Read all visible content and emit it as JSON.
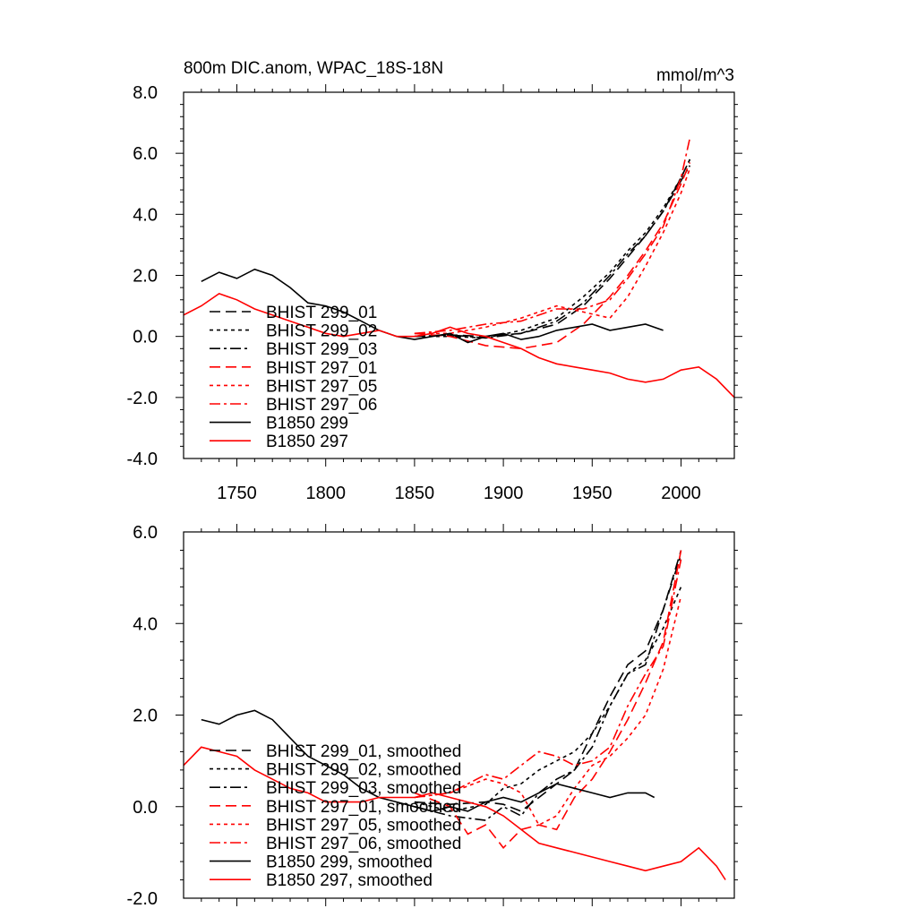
{
  "chart_data": [
    {
      "type": "line",
      "title_left": "800m DIC.anom, WPAC_18S-18N",
      "title_right": "mmol/m^3",
      "xlim": [
        1720,
        2030
      ],
      "ylim": [
        -4.0,
        8.0
      ],
      "xticks": [
        1750,
        1800,
        1850,
        1900,
        1950,
        2000
      ],
      "xtick_labels": [
        "1750",
        "1800",
        "1850",
        "1900",
        "1950",
        "2000"
      ],
      "yticks": [
        -4.0,
        -2.0,
        0.0,
        2.0,
        4.0,
        6.0,
        8.0
      ],
      "ytick_labels": [
        "-4.0",
        "-2.0",
        "0.0",
        "2.0",
        "4.0",
        "6.0",
        "8.0"
      ],
      "legend_position": "left",
      "series": [
        {
          "name": "BHIST 299_01",
          "color": "#000000",
          "dash": "long",
          "x": [
            1850,
            1870,
            1890,
            1910,
            1930,
            1945,
            1960,
            1970,
            1980,
            1990,
            2000,
            2005
          ],
          "y": [
            0.0,
            0.05,
            0.0,
            0.1,
            0.4,
            1.0,
            1.9,
            2.6,
            3.3,
            4.1,
            5.2,
            5.8
          ]
        },
        {
          "name": "BHIST 299_02",
          "color": "#000000",
          "dash": "short",
          "x": [
            1850,
            1870,
            1890,
            1910,
            1930,
            1945,
            1960,
            1970,
            1980,
            1990,
            2000,
            2005
          ],
          "y": [
            0.0,
            0.0,
            -0.05,
            0.2,
            0.6,
            1.3,
            2.1,
            2.8,
            3.4,
            4.2,
            5.2,
            5.8
          ]
        },
        {
          "name": "BHIST 299_03",
          "color": "#000000",
          "dash": "dashdot",
          "x": [
            1850,
            1870,
            1890,
            1910,
            1930,
            1945,
            1960,
            1970,
            1980,
            1990,
            2000,
            2005
          ],
          "y": [
            0.0,
            0.05,
            -0.05,
            0.1,
            0.5,
            1.1,
            2.0,
            2.7,
            3.3,
            4.1,
            5.1,
            5.6
          ]
        },
        {
          "name": "BHIST 297_01",
          "color": "#ff0000",
          "dash": "long",
          "x": [
            1850,
            1870,
            1890,
            1910,
            1930,
            1945,
            1960,
            1970,
            1980,
            1990,
            2000,
            2005
          ],
          "y": [
            0.1,
            0.0,
            -0.3,
            -0.4,
            -0.2,
            0.4,
            1.3,
            2.0,
            2.8,
            3.7,
            5.0,
            5.7
          ]
        },
        {
          "name": "BHIST 297_05",
          "color": "#ff0000",
          "dash": "short",
          "x": [
            1850,
            1870,
            1890,
            1910,
            1930,
            1945,
            1960,
            1970,
            1980,
            1990,
            2000,
            2005
          ],
          "y": [
            0.1,
            0.1,
            0.3,
            0.6,
            1.0,
            0.8,
            0.6,
            1.3,
            2.3,
            3.4,
            4.7,
            5.5
          ]
        },
        {
          "name": "BHIST 297_06",
          "color": "#ff0000",
          "dash": "dashdot",
          "x": [
            1850,
            1870,
            1890,
            1910,
            1930,
            1945,
            1960,
            1970,
            1980,
            1990,
            2000,
            2005
          ],
          "y": [
            0.1,
            0.2,
            0.4,
            0.5,
            0.9,
            0.9,
            1.2,
            1.9,
            2.7,
            3.6,
            5.2,
            6.5
          ]
        },
        {
          "name": "B1850 299",
          "color": "#000000",
          "dash": "solid",
          "x": [
            1730,
            1740,
            1750,
            1760,
            1770,
            1780,
            1790,
            1800,
            1810,
            1820,
            1830,
            1840,
            1850,
            1860,
            1870,
            1880,
            1890,
            1900,
            1910,
            1920,
            1930,
            1940,
            1950,
            1960,
            1970,
            1980,
            1990
          ],
          "y": [
            1.8,
            2.1,
            1.9,
            2.2,
            2.0,
            1.6,
            1.1,
            1.0,
            0.8,
            0.5,
            0.2,
            0.0,
            -0.1,
            0.0,
            0.1,
            -0.2,
            0.0,
            0.1,
            -0.1,
            0.0,
            0.2,
            0.3,
            0.4,
            0.2,
            0.3,
            0.4,
            0.2
          ]
        },
        {
          "name": "B1850 297",
          "color": "#ff0000",
          "dash": "solid",
          "x": [
            1720,
            1730,
            1740,
            1750,
            1760,
            1770,
            1780,
            1790,
            1800,
            1810,
            1820,
            1830,
            1840,
            1850,
            1860,
            1870,
            1880,
            1890,
            1900,
            1910,
            1920,
            1930,
            1940,
            1950,
            1960,
            1970,
            1980,
            1990,
            2000,
            2010,
            2020,
            2030
          ],
          "y": [
            0.7,
            1.0,
            1.4,
            1.2,
            0.9,
            0.7,
            0.5,
            0.3,
            0.1,
            0.0,
            0.1,
            0.2,
            0.0,
            0.0,
            0.1,
            0.3,
            0.1,
            0.0,
            -0.2,
            -0.4,
            -0.7,
            -0.9,
            -1.0,
            -1.1,
            -1.2,
            -1.4,
            -1.5,
            -1.4,
            -1.1,
            -1.0,
            -1.4,
            -2.0
          ]
        }
      ]
    },
    {
      "type": "line",
      "title_left": "",
      "title_right": "",
      "xlim": [
        1720,
        2030
      ],
      "ylim": [
        -2.0,
        6.0
      ],
      "xticks": [
        1750,
        1800,
        1850,
        1900,
        1950,
        2000
      ],
      "xtick_labels": [
        "",
        "",
        "",
        "",
        "",
        ""
      ],
      "yticks": [
        -2.0,
        0.0,
        2.0,
        4.0,
        6.0
      ],
      "ytick_labels": [
        "-2.0",
        "0.0",
        "2.0",
        "4.0",
        "6.0"
      ],
      "legend_position": "left",
      "series": [
        {
          "name": "BHIST 299_01, smoothed",
          "color": "#000000",
          "dash": "long",
          "x": [
            1850,
            1870,
            1890,
            1900,
            1910,
            1920,
            1930,
            1940,
            1950,
            1960,
            1970,
            1980,
            1990,
            2000
          ],
          "y": [
            0.1,
            0.05,
            0.1,
            0.05,
            -0.1,
            0.2,
            0.5,
            0.8,
            1.6,
            2.4,
            3.1,
            3.4,
            4.3,
            5.6
          ]
        },
        {
          "name": "BHIST 299_02, smoothed",
          "color": "#000000",
          "dash": "short",
          "x": [
            1850,
            1870,
            1890,
            1900,
            1910,
            1920,
            1930,
            1940,
            1950,
            1960,
            1970,
            1980,
            1990,
            2000
          ],
          "y": [
            0.1,
            -0.1,
            0.05,
            0.4,
            0.5,
            0.8,
            1.0,
            1.2,
            1.6,
            2.2,
            2.9,
            3.2,
            3.9,
            4.8
          ]
        },
        {
          "name": "BHIST 299_03, smoothed",
          "color": "#000000",
          "dash": "dashdot",
          "x": [
            1850,
            1870,
            1890,
            1900,
            1910,
            1920,
            1930,
            1940,
            1950,
            1960,
            1970,
            1980,
            1990,
            2000
          ],
          "y": [
            0.0,
            -0.2,
            -0.3,
            0.0,
            -0.2,
            0.3,
            0.6,
            0.8,
            1.3,
            2.2,
            2.9,
            3.1,
            4.3,
            5.5
          ]
        },
        {
          "name": "BHIST 297_01, smoothed",
          "color": "#ff0000",
          "dash": "long",
          "x": [
            1850,
            1870,
            1880,
            1890,
            1900,
            1910,
            1920,
            1930,
            1940,
            1950,
            1960,
            1970,
            1980,
            1990,
            2000
          ],
          "y": [
            0.3,
            0.0,
            -0.6,
            -0.4,
            -0.9,
            -0.5,
            -0.4,
            -0.5,
            0.2,
            0.6,
            1.2,
            1.9,
            2.7,
            3.6,
            5.6
          ]
        },
        {
          "name": "BHIST 297_05, smoothed",
          "color": "#ff0000",
          "dash": "short",
          "x": [
            1850,
            1870,
            1890,
            1900,
            1910,
            1920,
            1930,
            1940,
            1950,
            1960,
            1970,
            1980,
            1990,
            2000
          ],
          "y": [
            0.2,
            0.3,
            0.6,
            0.5,
            0.3,
            -0.4,
            -0.2,
            0.4,
            0.9,
            1.1,
            1.5,
            2.0,
            3.0,
            4.6
          ]
        },
        {
          "name": "BHIST 297_06, smoothed",
          "color": "#ff0000",
          "dash": "dashdot",
          "x": [
            1850,
            1870,
            1890,
            1900,
            1910,
            1920,
            1930,
            1940,
            1950,
            1960,
            1970,
            1980,
            1990,
            2000
          ],
          "y": [
            0.2,
            0.3,
            0.7,
            0.6,
            0.9,
            1.2,
            1.1,
            0.9,
            1.0,
            1.3,
            2.2,
            2.9,
            3.5,
            5.4
          ]
        },
        {
          "name": "B1850 299, smoothed",
          "color": "#000000",
          "dash": "solid",
          "x": [
            1730,
            1740,
            1750,
            1760,
            1770,
            1780,
            1790,
            1800,
            1810,
            1820,
            1830,
            1840,
            1850,
            1860,
            1870,
            1880,
            1890,
            1900,
            1910,
            1920,
            1930,
            1940,
            1950,
            1960,
            1970,
            1980,
            1985
          ],
          "y": [
            1.9,
            1.8,
            2.0,
            2.1,
            1.9,
            1.5,
            1.1,
            0.9,
            0.7,
            0.4,
            0.2,
            0.1,
            0.0,
            -0.1,
            0.0,
            -0.1,
            0.1,
            0.2,
            0.1,
            0.3,
            0.5,
            0.4,
            0.3,
            0.2,
            0.3,
            0.3,
            0.2
          ]
        },
        {
          "name": "B1850 297, smoothed",
          "color": "#ff0000",
          "dash": "solid",
          "x": [
            1720,
            1730,
            1740,
            1750,
            1760,
            1770,
            1780,
            1790,
            1800,
            1810,
            1820,
            1830,
            1840,
            1850,
            1860,
            1870,
            1880,
            1890,
            1900,
            1910,
            1920,
            1930,
            1940,
            1950,
            1960,
            1970,
            1980,
            1990,
            2000,
            2010,
            2020,
            2025
          ],
          "y": [
            0.9,
            1.3,
            1.2,
            1.1,
            0.8,
            0.6,
            0.4,
            0.3,
            0.1,
            0.1,
            0.1,
            0.2,
            0.2,
            0.2,
            0.3,
            0.2,
            0.1,
            0.0,
            -0.2,
            -0.5,
            -0.8,
            -0.9,
            -1.0,
            -1.1,
            -1.2,
            -1.3,
            -1.4,
            -1.3,
            -1.2,
            -0.9,
            -1.3,
            -1.6
          ]
        }
      ]
    }
  ]
}
